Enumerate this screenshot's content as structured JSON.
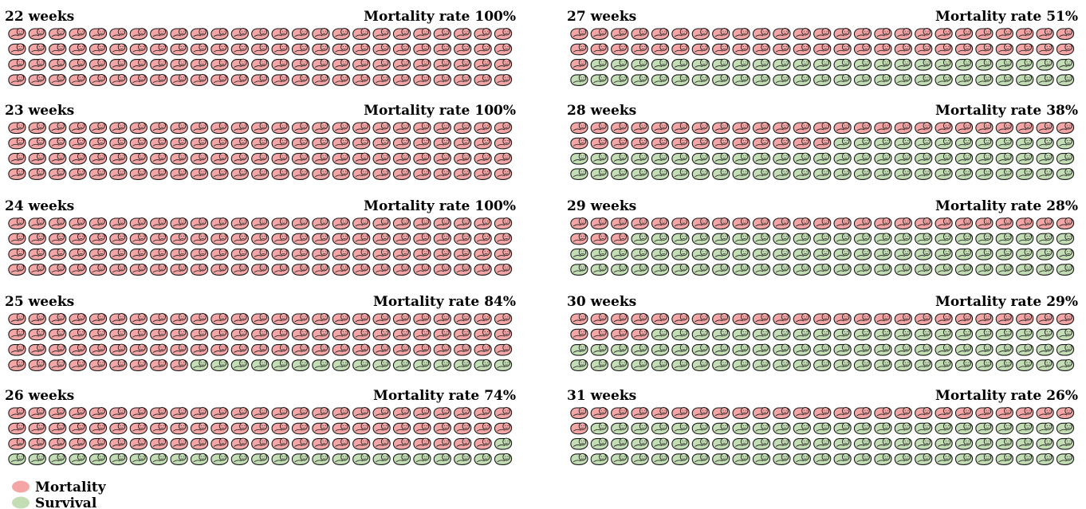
{
  "chart_data": {
    "type": "pictogram",
    "icons_per_panel": 100,
    "grid": {
      "rows": 4,
      "columns": 25
    },
    "fill_order": "row-major, mortality icons first",
    "panels": [
      {
        "title": "22 weeks",
        "rate_label": "Mortality rate",
        "rate_text": "100%",
        "mortality": 100,
        "survival": 0
      },
      {
        "title": "23 weeks",
        "rate_label": "Mortality rate",
        "rate_text": "100%",
        "mortality": 100,
        "survival": 0
      },
      {
        "title": "24 weeks",
        "rate_label": "Mortality rate",
        "rate_text": "100%",
        "mortality": 100,
        "survival": 0
      },
      {
        "title": "25 weeks",
        "rate_label": "Mortality rate",
        "rate_text": "84%",
        "mortality": 84,
        "survival": 16
      },
      {
        "title": "26 weeks",
        "rate_label": "Mortality rate",
        "rate_text": "74%",
        "mortality": 74,
        "survival": 26
      },
      {
        "title": "27 weeks",
        "rate_label": "Mortality rate",
        "rate_text": "51%",
        "mortality": 51,
        "survival": 49
      },
      {
        "title": "28 weeks",
        "rate_label": "Mortality rate",
        "rate_text": "38%",
        "mortality": 38,
        "survival": 62
      },
      {
        "title": "29 weeks",
        "rate_label": "Mortality rate",
        "rate_text": "28%",
        "mortality": 28,
        "survival": 72
      },
      {
        "title": "30 weeks",
        "rate_label": "Mortality rate",
        "rate_text": "29%",
        "mortality": 29,
        "survival": 71
      },
      {
        "title": "31 weeks",
        "rate_label": "Mortality rate",
        "rate_text": "26%",
        "mortality": 26,
        "survival": 74
      }
    ],
    "legend": [
      {
        "label": "Mortality",
        "color": "#f4a6a6"
      },
      {
        "label": "Survival",
        "color": "#c3ddb4"
      }
    ],
    "icon": "swaddled-baby-icon",
    "colors": {
      "mortality": "#f4a6a6",
      "survival": "#c3ddb4",
      "outline": "#1a1a1a"
    }
  }
}
